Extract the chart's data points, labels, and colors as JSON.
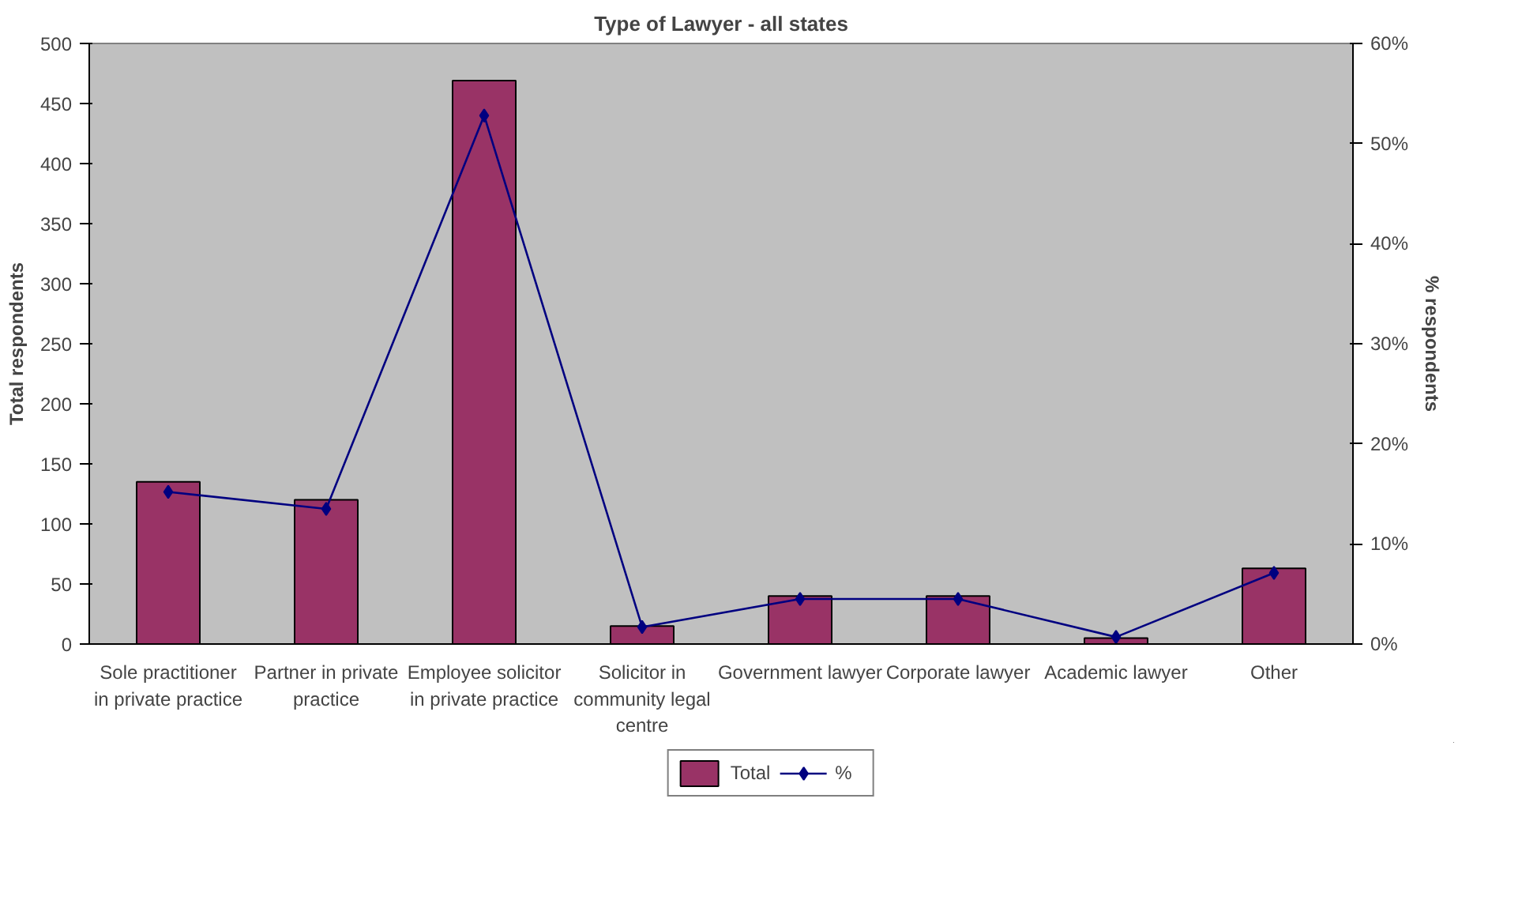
{
  "chart_data": {
    "type": "bar",
    "title": "Type of Lawyer - all states",
    "ylabel": "Total respondents",
    "y2label": "% respondents",
    "categories": [
      "Sole practitioner in private practice",
      "Partner in private practice",
      "Employee solicitor in private practice",
      "Solicitor in community legal centre",
      "Government lawyer",
      "Corporate lawyer",
      "Academic lawyer",
      "Other"
    ],
    "series": [
      {
        "name": "Total",
        "color": "#993366",
        "values": [
          135,
          120,
          469,
          15,
          40,
          40,
          5,
          63
        ]
      },
      {
        "name": "%",
        "type": "line",
        "axis": "y2",
        "color": "#000080",
        "marker": "diamond",
        "values": [
          15.2,
          13.5,
          52.8,
          1.7,
          4.5,
          4.5,
          0.7,
          7.1
        ]
      }
    ],
    "ylim": [
      0,
      500
    ],
    "yticks": [
      0,
      50,
      100,
      150,
      200,
      250,
      300,
      350,
      400,
      450,
      500
    ],
    "y2lim": [
      0,
      60
    ],
    "y2ticks": [
      {
        "value": 0,
        "label": "0%"
      },
      {
        "value": 10,
        "label": "10%"
      },
      {
        "value": 20,
        "label": "20%"
      },
      {
        "value": 30,
        "label": "30%"
      },
      {
        "value": 40,
        "label": "40%"
      },
      {
        "value": 50,
        "label": "50%"
      },
      {
        "value": 60,
        "label": "60%"
      }
    ],
    "grid": false,
    "legend": "bottom"
  }
}
